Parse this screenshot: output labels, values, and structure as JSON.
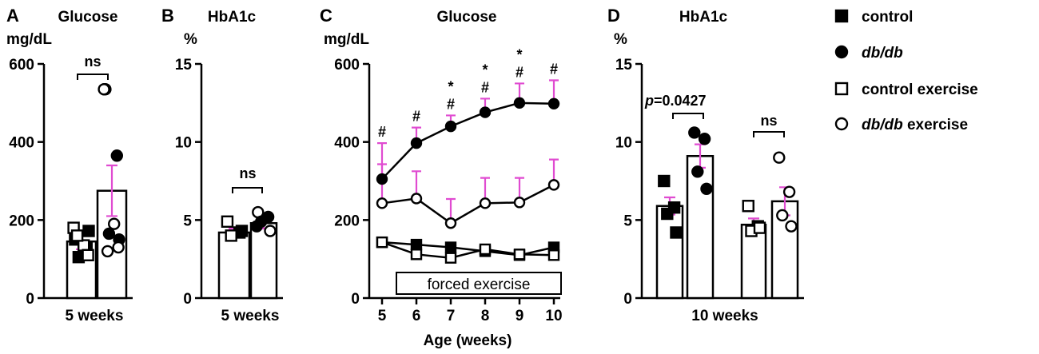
{
  "colors": {
    "error_bar": "#e04bd1",
    "ink": "#000000"
  },
  "legend": [
    {
      "marker": "filled-square",
      "label": "control",
      "italic": false
    },
    {
      "marker": "filled-circle",
      "label": "db/db",
      "italic": true
    },
    {
      "marker": "open-square",
      "label": "control exercise",
      "italic": false
    },
    {
      "marker": "open-circle",
      "label": "db/db exercise",
      "italic": false,
      "italic_part": "db/db",
      "rest": " exercise"
    }
  ],
  "chart_data": [
    {
      "panel": "A",
      "type": "bar",
      "title": "Glucose",
      "ylabel": "mg/dL",
      "ylim": [
        0,
        600
      ],
      "yticks": [
        0,
        200,
        400,
        600
      ],
      "xlabel": "5 weeks",
      "bars": [
        {
          "group": "control",
          "mean": 145,
          "sem": 20,
          "points": [
            {
              "value": 150,
              "marker": "filled-square"
            },
            {
              "value": 130,
              "marker": "filled-square"
            },
            {
              "value": 105,
              "marker": "filled-square"
            },
            {
              "value": 172,
              "marker": "filled-square"
            },
            {
              "value": 180,
              "marker": "open-square"
            },
            {
              "value": 135,
              "marker": "open-square"
            },
            {
              "value": 110,
              "marker": "open-square"
            },
            {
              "value": 160,
              "marker": "open-square"
            }
          ]
        },
        {
          "group": "db/db",
          "mean": 275,
          "sem": 65,
          "points": [
            {
              "value": 535,
              "marker": "filled-circle"
            },
            {
              "value": 365,
              "marker": "filled-circle"
            },
            {
              "value": 165,
              "marker": "filled-circle"
            },
            {
              "value": 150,
              "marker": "filled-circle"
            },
            {
              "value": 535,
              "marker": "open-circle"
            },
            {
              "value": 190,
              "marker": "open-circle"
            },
            {
              "value": 130,
              "marker": "open-circle"
            },
            {
              "value": 120,
              "marker": "open-circle"
            }
          ]
        }
      ],
      "annotations": [
        {
          "text": "ns"
        }
      ]
    },
    {
      "panel": "B",
      "type": "bar",
      "title": "HbA1c",
      "ylabel": "%",
      "ylim": [
        0,
        15
      ],
      "yticks": [
        0,
        5,
        10,
        15
      ],
      "xlabel": "5 weeks",
      "bars": [
        {
          "group": "control",
          "mean": 4.2,
          "sem": 0.25,
          "points": [
            {
              "value": 4.9,
              "marker": "open-square"
            },
            {
              "value": 4.2,
              "marker": "filled-square"
            },
            {
              "value": 4.0,
              "marker": "open-square"
            },
            {
              "value": 4.3,
              "marker": "filled-square"
            }
          ]
        },
        {
          "group": "db/db",
          "mean": 4.8,
          "sem": 0.35,
          "points": [
            {
              "value": 5.5,
              "marker": "open-circle"
            },
            {
              "value": 5.2,
              "marker": "filled-circle"
            },
            {
              "value": 4.9,
              "marker": "filled-circle"
            },
            {
              "value": 4.3,
              "marker": "open-circle"
            },
            {
              "value": 4.6,
              "marker": "filled-circle"
            }
          ]
        }
      ],
      "annotations": [
        {
          "text": "ns"
        }
      ]
    },
    {
      "panel": "C",
      "type": "line",
      "title": "Glucose",
      "ylabel": "mg/dL",
      "xlabel": "Age (weeks)",
      "ylim": [
        0,
        600
      ],
      "yticks": [
        0,
        200,
        400,
        600
      ],
      "x": [
        5,
        6,
        7,
        8,
        9,
        10
      ],
      "series": [
        {
          "name": "control",
          "marker": "filled-square",
          "values": [
            143,
            137,
            130,
            120,
            110,
            130
          ],
          "sem": [
            8,
            6,
            6,
            6,
            5,
            6
          ]
        },
        {
          "name": "db/db",
          "marker": "filled-circle",
          "values": [
            305,
            397,
            440,
            476,
            500,
            498
          ],
          "sem": [
            92,
            40,
            28,
            35,
            50,
            60
          ]
        },
        {
          "name": "control exercise",
          "marker": "open-square",
          "values": [
            143,
            112,
            103,
            125,
            112,
            110
          ],
          "sem": [
            6,
            6,
            5,
            6,
            5,
            5
          ]
        },
        {
          "name": "db/db exercise",
          "marker": "open-circle",
          "values": [
            243,
            255,
            192,
            243,
            245,
            290
          ],
          "sem": [
            100,
            70,
            62,
            65,
            63,
            65
          ]
        }
      ],
      "significance": [
        {
          "x": 5,
          "marks": [
            "#"
          ]
        },
        {
          "x": 6,
          "marks": [
            "#"
          ]
        },
        {
          "x": 7,
          "marks": [
            "*",
            "#"
          ]
        },
        {
          "x": 8,
          "marks": [
            "*",
            "#"
          ]
        },
        {
          "x": 9,
          "marks": [
            "*",
            "#"
          ]
        },
        {
          "x": 10,
          "marks": [
            "#"
          ]
        }
      ],
      "annotation_box": "forced exercise"
    },
    {
      "panel": "D",
      "type": "bar",
      "title": "HbA1c",
      "ylabel": "%",
      "ylim": [
        0,
        15
      ],
      "yticks": [
        0,
        5,
        10,
        15
      ],
      "xlabel": "10 weeks",
      "bars": [
        {
          "group": "control",
          "mean": 5.9,
          "sem": 0.55,
          "points": [
            {
              "value": 7.5,
              "marker": "filled-square"
            },
            {
              "value": 5.8,
              "marker": "filled-square"
            },
            {
              "value": 5.4,
              "marker": "filled-square"
            },
            {
              "value": 4.2,
              "marker": "filled-square"
            }
          ]
        },
        {
          "group": "db/db",
          "mean": 9.1,
          "sem": 0.75,
          "points": [
            {
              "value": 10.6,
              "marker": "filled-circle"
            },
            {
              "value": 10.2,
              "marker": "filled-circle"
            },
            {
              "value": 8.1,
              "marker": "filled-circle"
            },
            {
              "value": 7.0,
              "marker": "filled-circle"
            }
          ]
        },
        {
          "group": "control exercise",
          "mean": 4.7,
          "sem": 0.4,
          "points": [
            {
              "value": 5.9,
              "marker": "open-square"
            },
            {
              "value": 4.6,
              "marker": "open-square"
            },
            {
              "value": 4.3,
              "marker": "open-square"
            },
            {
              "value": 4.5,
              "marker": "open-square"
            }
          ]
        },
        {
          "group": "db/db exercise",
          "mean": 6.2,
          "sem": 0.9,
          "points": [
            {
              "value": 9.0,
              "marker": "open-circle"
            },
            {
              "value": 6.8,
              "marker": "open-circle"
            },
            {
              "value": 5.3,
              "marker": "open-circle"
            },
            {
              "value": 4.6,
              "marker": "open-circle"
            }
          ]
        }
      ],
      "annotations": [
        {
          "text_prefix": "p",
          "text": "=0.0427"
        },
        {
          "text": "ns"
        }
      ]
    }
  ]
}
